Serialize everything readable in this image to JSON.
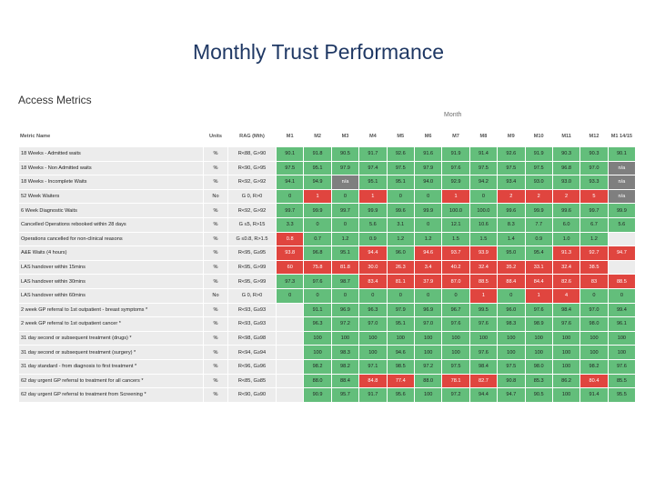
{
  "title": "Monthly  Trust Performance",
  "section_title": "Access Metrics",
  "month_label": "Month",
  "columns": [
    "Metric Name",
    "Units",
    "RAG (Mth)",
    "M1",
    "M2",
    "M3",
    "M4",
    "M5",
    "M6",
    "M7",
    "M8",
    "M9",
    "M10",
    "M11",
    "M12",
    "M1 14/15"
  ],
  "status_colors": {
    "green": "#63be7b",
    "red": "#e0453f",
    "grey": "#7f7f7f",
    "empty": "#ececec"
  },
  "rows": [
    {
      "name": "18 Weeks - Admitted waits",
      "units": "%",
      "rag": "R<88, G>90",
      "values": [
        "90.1",
        "91.8",
        "90.5",
        "91.7",
        "92.6",
        "91.6",
        "91.9",
        "91.4",
        "92.6",
        "91.9",
        "90.3",
        "90.3",
        "90.1"
      ],
      "status": [
        "g",
        "g",
        "g",
        "g",
        "g",
        "g",
        "g",
        "g",
        "g",
        "g",
        "g",
        "g",
        "g"
      ]
    },
    {
      "name": "18 Weeks - Non Admitted waits",
      "units": "%",
      "rag": "R<90, G>95",
      "values": [
        "97.5",
        "95.1",
        "97.9",
        "97.4",
        "97.5",
        "97.9",
        "97.6",
        "97.5",
        "97.5",
        "97.5",
        "96.8",
        "97.0",
        "n/a"
      ],
      "status": [
        "g",
        "g",
        "g",
        "g",
        "g",
        "g",
        "g",
        "g",
        "g",
        "g",
        "g",
        "g",
        "gy"
      ]
    },
    {
      "name": "18 Weeks - Incomplete Waits",
      "units": "%",
      "rag": "R<92, G>92",
      "values": [
        "94.1",
        "94.9",
        "n/a",
        "95.1",
        "95.1",
        "94.0",
        "92.9",
        "94.2",
        "93.4",
        "93.0",
        "93.0",
        "93.3",
        "n/a"
      ],
      "status": [
        "g",
        "g",
        "gy",
        "g",
        "g",
        "g",
        "g",
        "g",
        "g",
        "g",
        "g",
        "g",
        "gy"
      ]
    },
    {
      "name": "52 Week Waiters",
      "units": "No",
      "rag": "G 0, R>0",
      "values": [
        "0",
        "1",
        "0",
        "1",
        "0",
        "0",
        "1",
        "0",
        "2",
        "2",
        "2",
        "5",
        "n/a"
      ],
      "status": [
        "g",
        "r",
        "g",
        "r",
        "g",
        "g",
        "r",
        "g",
        "r",
        "r",
        "r",
        "r",
        "gy"
      ]
    },
    {
      "name": "6 Week Diagnostic Waits",
      "units": "%",
      "rag": "R<92, G>92",
      "values": [
        "99.7",
        "99.9",
        "99.7",
        "99.9",
        "99.6",
        "99.9",
        "100.0",
        "100.0",
        "99.6",
        "99.9",
        "99.6",
        "99.7",
        "99.9"
      ],
      "status": [
        "g",
        "g",
        "g",
        "g",
        "g",
        "g",
        "g",
        "g",
        "g",
        "g",
        "g",
        "g",
        "g"
      ]
    },
    {
      "name": "Cancelled Operations rebooked within 28 days",
      "units": "%",
      "rag": "G ≤5, R>15",
      "values": [
        "3.3",
        "0",
        "0",
        "5.6",
        "3.1",
        "0",
        "12.1",
        "10.6",
        "8.3",
        "7.7",
        "6.0",
        "6.7",
        "5.6"
      ],
      "status": [
        "g",
        "g",
        "g",
        "g",
        "g",
        "g",
        "g",
        "g",
        "g",
        "g",
        "g",
        "g",
        "g"
      ]
    },
    {
      "name": "Operations cancelled for non-clinical reasons",
      "units": "%",
      "rag": "G ≤0.8, R>1.5",
      "values": [
        "0.8",
        "0.7",
        "1.2",
        "0.9",
        "1.2",
        "1.2",
        "1.5",
        "1.5",
        "1.4",
        "0.9",
        "1.0",
        "1.2",
        ""
      ],
      "status": [
        "r",
        "g",
        "g",
        "g",
        "g",
        "g",
        "g",
        "g",
        "g",
        "g",
        "g",
        "g",
        "w"
      ]
    },
    {
      "name": "A&E Waits (4 hours)",
      "units": "%",
      "rag": "R<95, G≥95",
      "values": [
        "93.8",
        "96.8",
        "95.1",
        "94.4",
        "96.0",
        "94.6",
        "93.7",
        "93.9",
        "95.0",
        "95.4",
        "91.3",
        "92.7",
        "94.7"
      ],
      "status": [
        "r",
        "g",
        "g",
        "r",
        "g",
        "r",
        "r",
        "r",
        "g",
        "g",
        "r",
        "r",
        "r"
      ]
    },
    {
      "name": "LAS handover within 15mins",
      "units": "%",
      "rag": "R<95, G>99",
      "values": [
        "60",
        "75.8",
        "81.8",
        "30.0",
        "26.3",
        "3.4",
        "40.2",
        "32.4",
        "35.2",
        "33.1",
        "32.4",
        "38.5",
        ""
      ],
      "status": [
        "r",
        "r",
        "r",
        "r",
        "r",
        "r",
        "r",
        "r",
        "r",
        "r",
        "r",
        "r",
        "w"
      ]
    },
    {
      "name": "LAS handover within 30mins",
      "units": "%",
      "rag": "R<95, G>99",
      "values": [
        "97.3",
        "97.6",
        "98.7",
        "83.4",
        "81.1",
        "37.9",
        "87.0",
        "88.5",
        "88.4",
        "84.4",
        "82.6",
        "83",
        "88.5"
      ],
      "status": [
        "g",
        "g",
        "g",
        "r",
        "r",
        "r",
        "r",
        "r",
        "r",
        "r",
        "r",
        "r",
        "r"
      ]
    },
    {
      "name": "LAS handover within 60mins",
      "units": "No",
      "rag": "G 0, R>0",
      "values": [
        "0",
        "0",
        "0",
        "0",
        "0",
        "0",
        "0",
        "1",
        "0",
        "1",
        "4",
        "0",
        "0"
      ],
      "status": [
        "g",
        "g",
        "g",
        "g",
        "g",
        "g",
        "g",
        "r",
        "g",
        "r",
        "r",
        "g",
        "g"
      ]
    },
    {
      "name": "2 week GP referral to 1st outpatient - breast symptoms *",
      "units": "%",
      "rag": "R<93, G≥93",
      "values": [
        "",
        "91.1",
        "96.9",
        "96.3",
        "97.9",
        "96.9",
        "96.7",
        "99.5",
        "96.0",
        "97.6",
        "98.4",
        "97.0",
        "99.4"
      ],
      "status": [
        "w",
        "g",
        "g",
        "g",
        "g",
        "g",
        "g",
        "g",
        "g",
        "g",
        "g",
        "g",
        "g"
      ]
    },
    {
      "name": "2 week GP referral to 1st outpatient cancer *",
      "units": "%",
      "rag": "R<93, G≥93",
      "values": [
        "",
        "96.3",
        "97.2",
        "97.0",
        "95.1",
        "97.0",
        "97.6",
        "97.6",
        "98.3",
        "98.9",
        "97.6",
        "98.0",
        "96.1"
      ],
      "status": [
        "w",
        "g",
        "g",
        "g",
        "g",
        "g",
        "g",
        "g",
        "g",
        "g",
        "g",
        "g",
        "g"
      ]
    },
    {
      "name": "31 day second or subsequent treatment (drugs) *",
      "units": "%",
      "rag": "R<98, G≥98",
      "values": [
        "",
        "100",
        "100",
        "100",
        "100",
        "100",
        "100",
        "100",
        "100",
        "100",
        "100",
        "100",
        "100"
      ],
      "status": [
        "w",
        "g",
        "g",
        "g",
        "g",
        "g",
        "g",
        "g",
        "g",
        "g",
        "g",
        "g",
        "g"
      ]
    },
    {
      "name": "31 day second or subsequent treatment (surgery) *",
      "units": "%",
      "rag": "R<94, G≥94",
      "values": [
        "",
        "100",
        "98.3",
        "100",
        "94.6",
        "100",
        "100",
        "97.6",
        "100",
        "100",
        "100",
        "100",
        "100"
      ],
      "status": [
        "w",
        "g",
        "g",
        "g",
        "g",
        "g",
        "g",
        "g",
        "g",
        "g",
        "g",
        "g",
        "g"
      ]
    },
    {
      "name": "31 day standard - from diagnosis to first treatment *",
      "units": "%",
      "rag": "R<96, G≥96",
      "values": [
        "",
        "98.2",
        "98.2",
        "97.1",
        "98.5",
        "97.2",
        "97.5",
        "98.4",
        "97.5",
        "98.0",
        "100",
        "98.2",
        "97.6"
      ],
      "status": [
        "w",
        "g",
        "g",
        "g",
        "g",
        "g",
        "g",
        "g",
        "g",
        "g",
        "g",
        "g",
        "g"
      ]
    },
    {
      "name": "62 day urgent GP referral to treatment for all cancers *",
      "units": "%",
      "rag": "R<85, G≥85",
      "values": [
        "",
        "88.0",
        "88.4",
        "84.8",
        "77.4",
        "88.0",
        "78.1",
        "82.7",
        "90.8",
        "85.3",
        "86.2",
        "80.4",
        "85.5"
      ],
      "status": [
        "w",
        "g",
        "g",
        "r",
        "r",
        "g",
        "r",
        "r",
        "g",
        "g",
        "g",
        "r",
        "g"
      ]
    },
    {
      "name": "62 day urgent GP referral to treatment from Screening *",
      "units": "%",
      "rag": "R<90, G≥90",
      "values": [
        "",
        "90.9",
        "95.7",
        "91.7",
        "95.6",
        "100",
        "97.2",
        "94.4",
        "94.7",
        "90.5",
        "100",
        "91.4",
        "95.5"
      ],
      "status": [
        "w",
        "g",
        "g",
        "g",
        "g",
        "g",
        "g",
        "g",
        "g",
        "g",
        "g",
        "g",
        "g"
      ]
    }
  ]
}
